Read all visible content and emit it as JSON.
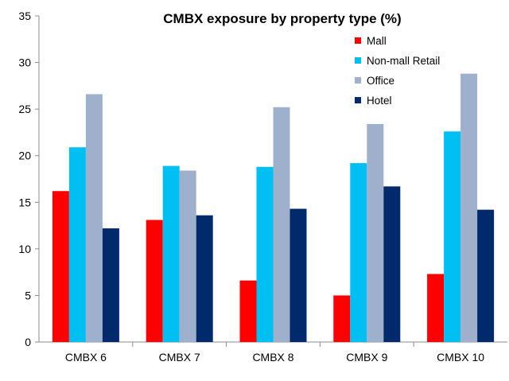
{
  "chart_data": {
    "type": "bar",
    "title": "CMBX exposure by property type (%)",
    "xlabel": "",
    "ylabel": "",
    "categories": [
      "CMBX 6",
      "CMBX 7",
      "CMBX 8",
      "CMBX 9",
      "CMBX 10"
    ],
    "ylim": [
      0,
      35
    ],
    "yticks": [
      "0",
      "5",
      "10",
      "15",
      "20",
      "25",
      "30",
      "35"
    ],
    "grid": false,
    "legend_position": "top-right",
    "series": [
      {
        "name": "Mall",
        "color": "#ff0000",
        "values": [
          16.2,
          13.1,
          6.6,
          5.0,
          7.3
        ]
      },
      {
        "name": "Non-mall Retail",
        "color": "#00bff3",
        "values": [
          20.9,
          18.9,
          18.8,
          19.2,
          22.6
        ]
      },
      {
        "name": "Office",
        "color": "#9fb0cc",
        "values": [
          26.6,
          18.4,
          25.2,
          23.4,
          28.8
        ]
      },
      {
        "name": "Hotel",
        "color": "#002a6b",
        "values": [
          12.2,
          13.6,
          14.3,
          16.7,
          14.2
        ]
      }
    ]
  }
}
